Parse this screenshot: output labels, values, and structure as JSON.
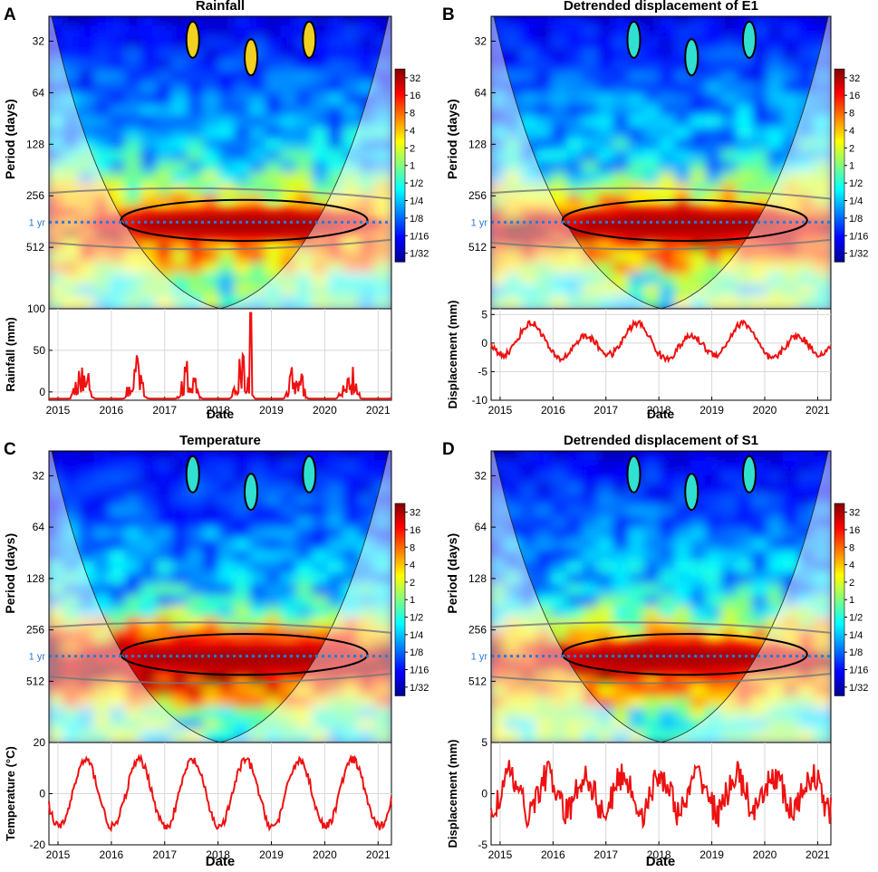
{
  "figure": {
    "x_axis_label": "Date"
  },
  "colorbar_ticks": [
    "32",
    "16",
    "8",
    "4",
    "2",
    "1",
    "1/2",
    "1/4",
    "1/8",
    "1/16",
    "1/32"
  ],
  "year_marker_label": "1 yr",
  "colors": {
    "series_line": "#ee1111",
    "year_line": "#2b7bd6",
    "contour": "#000000",
    "coi_contour": "#777777"
  },
  "chart_data": [
    {
      "type": "heatmap",
      "panel_letter": "A",
      "title": "Rainfall",
      "ylabel": "Period (days)",
      "period_ticks": [
        "32",
        "64",
        "128",
        "256",
        "512"
      ],
      "x_ticks": [
        "2015",
        "2016",
        "2017",
        "2018",
        "2019",
        "2020",
        "2021"
      ],
      "signal_ylabel": "Rainfall (mm)",
      "signal_yticks": [
        "100",
        "50",
        "0"
      ],
      "signal_ylim": [
        -10,
        100
      ],
      "signal_type": "rain",
      "annual_band_power": 2.6
    },
    {
      "type": "heatmap",
      "panel_letter": "B",
      "title": "Detrended displacement of E1",
      "ylabel": "Period (days)",
      "period_ticks": [
        "32",
        "64",
        "128",
        "256",
        "512"
      ],
      "x_ticks": [
        "2015",
        "2016",
        "2017",
        "2018",
        "2019",
        "2020",
        "2021"
      ],
      "signal_ylabel": "Displacement (mm)",
      "signal_yticks": [
        "5",
        "0",
        "-5",
        "-10"
      ],
      "signal_ylim": [
        -10,
        6
      ],
      "signal_type": "dispE",
      "annual_band_power": 3.0
    },
    {
      "type": "heatmap",
      "panel_letter": "C",
      "title": "Temperature",
      "ylabel": "Period (days)",
      "period_ticks": [
        "32",
        "64",
        "128",
        "256",
        "512"
      ],
      "x_ticks": [
        "2015",
        "2016",
        "2017",
        "2018",
        "2019",
        "2020",
        "2021"
      ],
      "signal_ylabel": "Temperature (°C)",
      "signal_yticks": [
        "20",
        "0",
        "-20"
      ],
      "signal_ylim": [
        -20,
        20
      ],
      "signal_type": "temp",
      "annual_band_power": 3.6
    },
    {
      "type": "heatmap",
      "panel_letter": "D",
      "title": "Detrended displacement of S1",
      "ylabel": "Period (days)",
      "period_ticks": [
        "32",
        "64",
        "128",
        "256",
        "512"
      ],
      "x_ticks": [
        "2015",
        "2016",
        "2017",
        "2018",
        "2019",
        "2020",
        "2021"
      ],
      "signal_ylabel": "Displacement (mm)",
      "signal_yticks": [
        "5",
        "0",
        "-5"
      ],
      "signal_ylim": [
        -5,
        5
      ],
      "signal_type": "dispS",
      "annual_band_power": 3.0
    }
  ]
}
